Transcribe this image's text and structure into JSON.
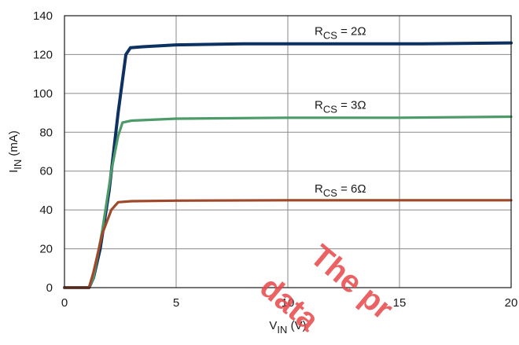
{
  "chart_data": {
    "type": "line",
    "xlabel": {
      "main": "V",
      "sub": "IN",
      "tail": " (V)"
    },
    "ylabel": {
      "main": "I",
      "sub": "IN",
      "tail": " (mA)"
    },
    "xlim": [
      0,
      20
    ],
    "ylim": [
      0,
      140
    ],
    "xticks": [
      0,
      5,
      10,
      15,
      20
    ],
    "yticks": [
      0,
      20,
      40,
      60,
      80,
      100,
      120,
      140
    ],
    "grid": true,
    "series": [
      {
        "label": {
          "main": "R",
          "sub": "CS",
          "tail": " = 2Ω"
        },
        "color": "#0d3161",
        "points": [
          [
            0,
            0
          ],
          [
            1.1,
            0
          ],
          [
            1.3,
            5
          ],
          [
            1.6,
            20
          ],
          [
            2.0,
            50
          ],
          [
            2.4,
            90
          ],
          [
            2.75,
            120
          ],
          [
            2.95,
            123.5
          ],
          [
            3.5,
            124
          ],
          [
            5,
            125
          ],
          [
            8,
            125.5
          ],
          [
            12,
            125.5
          ],
          [
            16,
            125.5
          ],
          [
            20,
            126
          ]
        ]
      },
      {
        "label": {
          "main": "R",
          "sub": "CS",
          "tail": " = 3Ω"
        },
        "color": "#4e9b6a",
        "points": [
          [
            0,
            0
          ],
          [
            1.1,
            0
          ],
          [
            1.3,
            5
          ],
          [
            1.7,
            30
          ],
          [
            2.1,
            60
          ],
          [
            2.4,
            78
          ],
          [
            2.6,
            85
          ],
          [
            3.0,
            86
          ],
          [
            5,
            87
          ],
          [
            10,
            87.5
          ],
          [
            15,
            87.5
          ],
          [
            20,
            88
          ]
        ]
      },
      {
        "label": {
          "main": "R",
          "sub": "CS",
          "tail": " = 6Ω"
        },
        "color": "#a0482a",
        "points": [
          [
            0,
            0
          ],
          [
            1.1,
            0
          ],
          [
            1.3,
            8
          ],
          [
            1.7,
            28
          ],
          [
            2.1,
            40
          ],
          [
            2.4,
            44
          ],
          [
            3.0,
            44.5
          ],
          [
            5,
            44.8
          ],
          [
            10,
            45
          ],
          [
            15,
            45
          ],
          [
            20,
            45
          ]
        ]
      }
    ],
    "watermark": "The pr... data..."
  }
}
